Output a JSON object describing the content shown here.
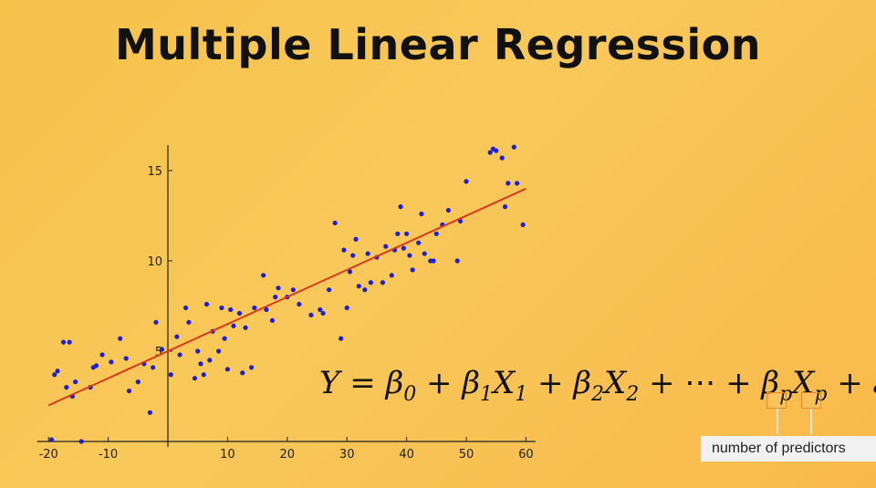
{
  "title": "Multiple Linear Regression",
  "tooltip": "number of predictors",
  "formula": {
    "Y": "Y",
    "eq": " = ",
    "b0": "β",
    "s0": "0",
    "plus1": " + ",
    "b1": "β",
    "s1": "1",
    "X1": "X",
    "sx1": "1",
    "plus2": " + ",
    "b2": "β",
    "s2": "2",
    "X2": "X",
    "sx2": "2",
    "plus3": " + ⋯ + ",
    "bp": "β",
    "sp": "p",
    "Xp": "X",
    "sxp": "p",
    "plus4": " + ",
    "eps": "ε"
  },
  "chart_data": {
    "type": "scatter",
    "title": "",
    "xlabel": "",
    "ylabel": "",
    "xlim": [
      -21,
      61
    ],
    "ylim": [
      0,
      16.5
    ],
    "xticks": [
      -20,
      -10,
      10,
      20,
      30,
      40,
      50,
      60
    ],
    "yticks": [
      5,
      10,
      15
    ],
    "grid": false,
    "point_color": "#1f1fd6",
    "line_color": "#d63a1a",
    "fit_line": {
      "x": [
        -20,
        60
      ],
      "y": [
        2.0,
        14.0
      ]
    },
    "points": [
      [
        -19.5,
        0.1
      ],
      [
        -19,
        3.7
      ],
      [
        -18.5,
        3.9
      ],
      [
        -17.5,
        5.5
      ],
      [
        -16.5,
        5.5
      ],
      [
        -17,
        3.0
      ],
      [
        -16,
        2.5
      ],
      [
        -15.5,
        3.3
      ],
      [
        -14.5,
        0.0
      ],
      [
        -13,
        3.0
      ],
      [
        -12.5,
        4.1
      ],
      [
        -12,
        4.2
      ],
      [
        -11,
        4.8
      ],
      [
        -9.5,
        4.4
      ],
      [
        -8,
        5.7
      ],
      [
        -7,
        4.6
      ],
      [
        -6.5,
        2.8
      ],
      [
        -5,
        3.3
      ],
      [
        -4,
        4.3
      ],
      [
        -3,
        1.6
      ],
      [
        -2.5,
        4.1
      ],
      [
        -2,
        6.6
      ],
      [
        -1,
        5.1
      ],
      [
        0.5,
        3.7
      ],
      [
        1.5,
        5.8
      ],
      [
        2,
        4.8
      ],
      [
        3.5,
        6.6
      ],
      [
        3,
        7.4
      ],
      [
        4.5,
        3.5
      ],
      [
        5,
        5.0
      ],
      [
        5.5,
        4.3
      ],
      [
        6,
        3.7
      ],
      [
        6.5,
        7.6
      ],
      [
        7,
        4.5
      ],
      [
        7.5,
        6.1
      ],
      [
        8.5,
        5.0
      ],
      [
        9,
        7.4
      ],
      [
        9.5,
        5.7
      ],
      [
        10,
        4.0
      ],
      [
        10.5,
        7.3
      ],
      [
        11,
        6.4
      ],
      [
        12,
        7.1
      ],
      [
        12.5,
        3.8
      ],
      [
        13,
        6.3
      ],
      [
        14,
        4.1
      ],
      [
        14.5,
        7.4
      ],
      [
        16,
        9.2
      ],
      [
        16.5,
        7.3
      ],
      [
        17.5,
        6.7
      ],
      [
        18,
        8.0
      ],
      [
        18.5,
        8.5
      ],
      [
        20,
        8.0
      ],
      [
        21,
        8.4
      ],
      [
        22,
        7.6
      ],
      [
        24,
        7.0
      ],
      [
        25.5,
        7.3
      ],
      [
        26,
        7.1
      ],
      [
        27,
        8.4
      ],
      [
        28,
        12.1
      ],
      [
        29,
        5.7
      ],
      [
        29.5,
        10.6
      ],
      [
        30,
        7.4
      ],
      [
        30.5,
        9.4
      ],
      [
        31,
        10.3
      ],
      [
        31.5,
        11.2
      ],
      [
        32,
        8.6
      ],
      [
        33,
        8.4
      ],
      [
        33.5,
        10.4
      ],
      [
        34,
        8.8
      ],
      [
        35,
        10.2
      ],
      [
        36,
        8.8
      ],
      [
        36.5,
        10.8
      ],
      [
        37.5,
        9.2
      ],
      [
        38,
        10.6
      ],
      [
        38.5,
        11.5
      ],
      [
        39,
        13.0
      ],
      [
        39.5,
        10.7
      ],
      [
        40,
        11.5
      ],
      [
        40.5,
        10.3
      ],
      [
        41,
        9.5
      ],
      [
        42,
        11.0
      ],
      [
        42.5,
        12.6
      ],
      [
        43,
        10.4
      ],
      [
        44,
        10.0
      ],
      [
        44.5,
        10.0
      ],
      [
        45,
        11.5
      ],
      [
        46,
        12.0
      ],
      [
        47,
        12.8
      ],
      [
        48.5,
        10.0
      ],
      [
        49,
        12.2
      ],
      [
        50,
        14.4
      ],
      [
        54,
        16.0
      ],
      [
        54.5,
        16.2
      ],
      [
        55,
        16.1
      ],
      [
        56,
        15.7
      ],
      [
        56.5,
        13.0
      ],
      [
        57,
        14.3
      ],
      [
        58,
        16.3
      ],
      [
        58.5,
        14.3
      ],
      [
        59.5,
        12.0
      ]
    ]
  }
}
